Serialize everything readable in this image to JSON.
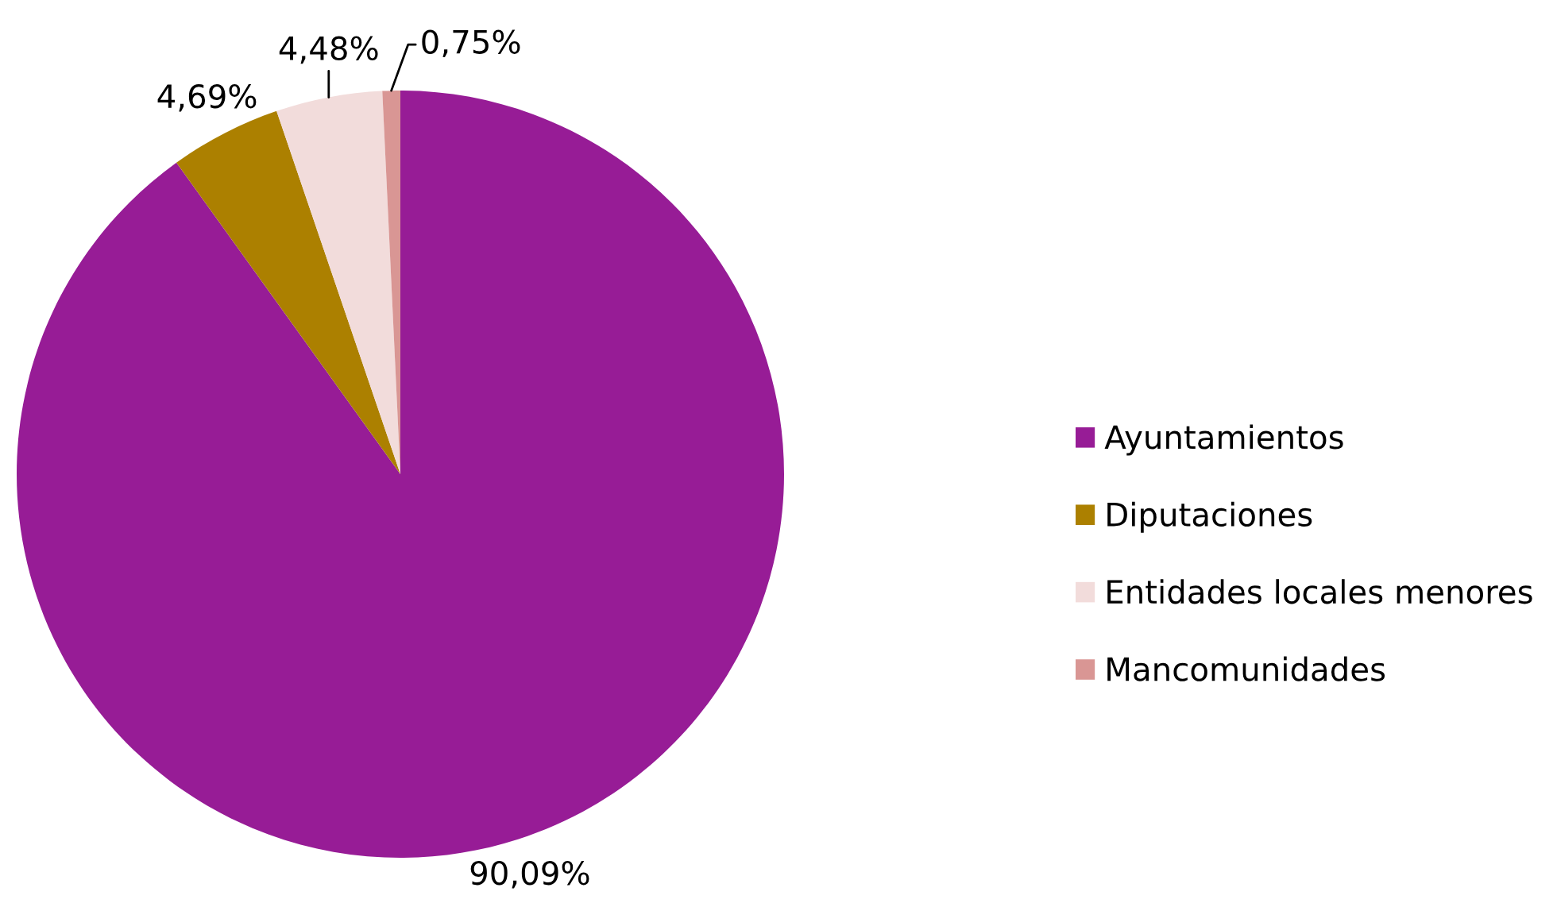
{
  "chart_data": {
    "type": "pie",
    "categories": [
      "Ayuntamientos",
      "Diputaciones",
      "Entidades locales menores",
      "Mancomunidades"
    ],
    "values": [
      90.09,
      4.69,
      4.48,
      0.75
    ],
    "colors": [
      "#971c96",
      "#ac8000",
      "#f2dcdb",
      "#d99694"
    ],
    "value_labels": [
      "90,09%",
      "4,69%",
      "4,48%",
      "0,75%"
    ],
    "legend": "right"
  }
}
